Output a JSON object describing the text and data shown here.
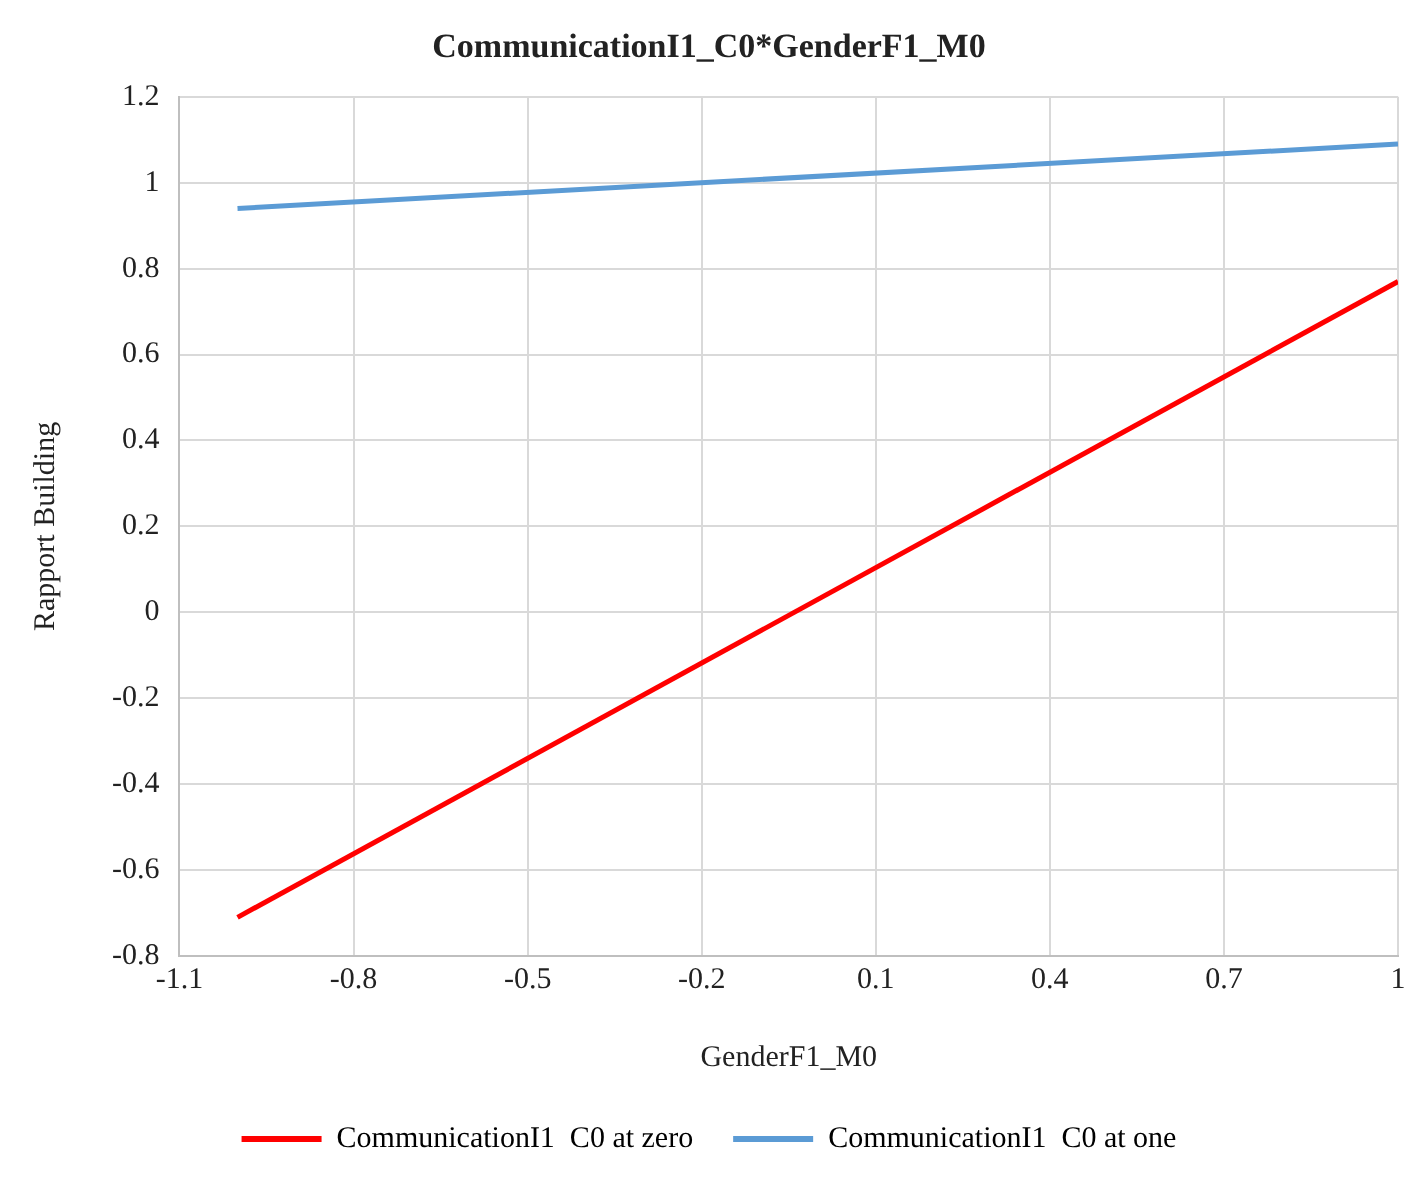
{
  "chart_data": {
    "type": "line",
    "title": "CommunicationI1_C0*GenderF1_M0",
    "xlabel": "GenderF1_M0",
    "ylabel": "Rapport Building",
    "x": [
      -1,
      1
    ],
    "series": [
      {
        "name": "CommunicationI1  C0 at zero",
        "color": "#ff0000",
        "values": [
          -0.71,
          0.77
        ]
      },
      {
        "name": "CommunicationI1  C0 at one",
        "color": "#5b9bd5",
        "values": [
          0.94,
          1.09
        ]
      }
    ],
    "xlim": [
      -1.1,
      1
    ],
    "xticks": [
      -1.1,
      -0.8,
      -0.5,
      -0.2,
      0.1,
      0.4,
      0.7,
      1
    ],
    "ylim": [
      -0.8,
      1.2
    ],
    "yticks": [
      -0.8,
      -0.6,
      -0.4,
      -0.2,
      0,
      0.2,
      0.4,
      0.6,
      0.8,
      1,
      1.2
    ],
    "grid": true,
    "legend": "bottom",
    "marker": "none",
    "line_style": "solid"
  }
}
